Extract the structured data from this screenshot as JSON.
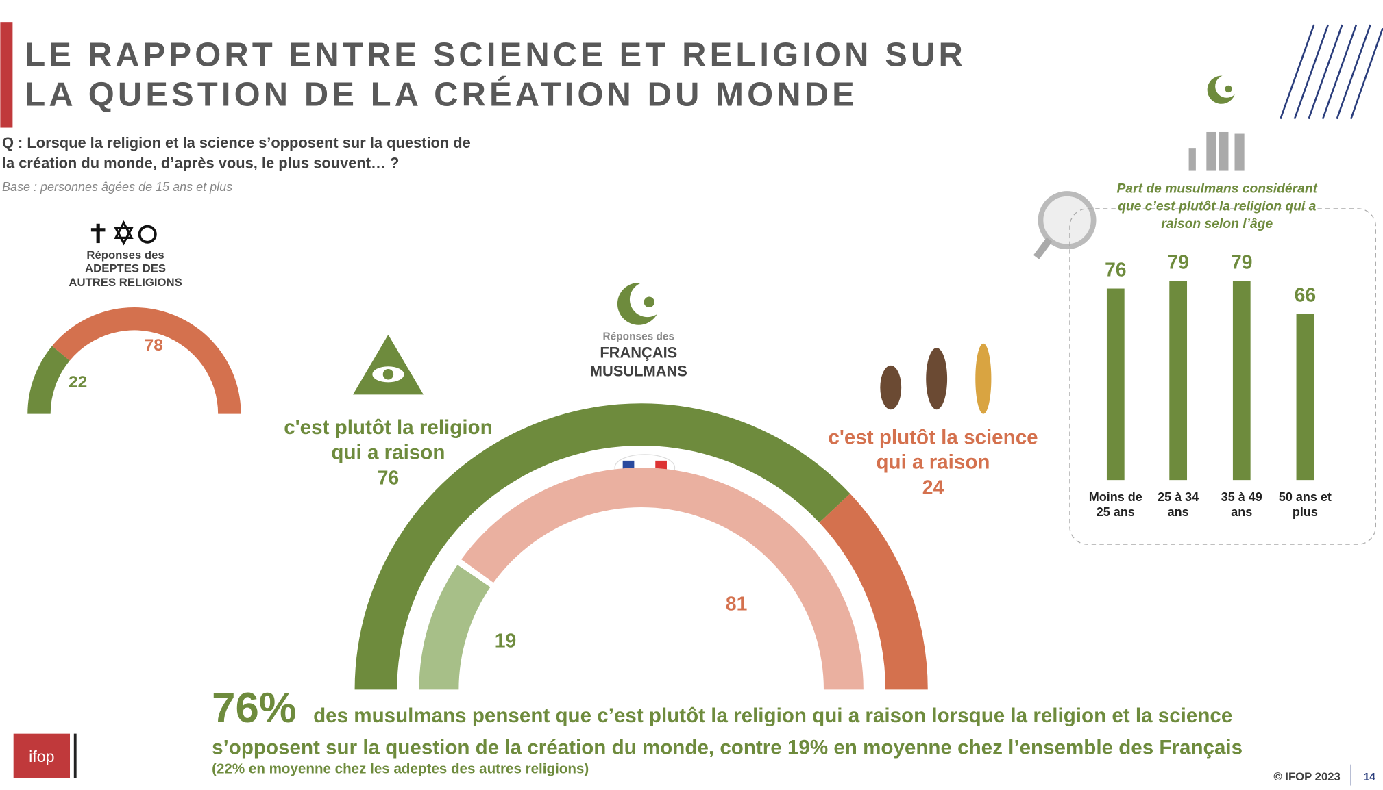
{
  "header": {
    "title": [
      "LE RAPPORT ENTRE SCIENCE ET RELIGION SUR",
      "LA QUESTION DE LA CRÉATION DU MONDE"
    ],
    "question": [
      "Q : Lorsque la religion et la science s’opposent sur la question de",
      "la création du monde, d’après vous, le plus souvent… ?"
    ],
    "base": "Base : personnes âgées de 15 ans et plus"
  },
  "chart_data": [
    {
      "type": "gauge",
      "title": [
        "Réponses des",
        "ADEPTES DES",
        "AUTRES RELIGIONS"
      ],
      "series": [
        {
          "colors": [
            "#6e8b3d",
            "#d4714e"
          ],
          "values": [
            22,
            78
          ]
        }
      ]
    },
    {
      "type": "gauge",
      "title": [
        "Réponses des",
        "FRANÇAIS",
        "MUSULMANS"
      ],
      "categories": [
        [
          "c'est plutôt la religion",
          "qui a raison"
        ],
        [
          "c'est plutôt la science",
          "qui a raison"
        ]
      ],
      "series": [
        {
          "colors": [
            "#6e8b3d",
            "#d4714e"
          ],
          "values": [
            76,
            24
          ]
        },
        {
          "colors": [
            "#a7bf88",
            "#eab0a0"
          ],
          "values": [
            19,
            81
          ]
        }
      ]
    },
    {
      "type": "bar",
      "title": [
        "Part de musulmans considérant",
        "que c’est plutôt la religion qui a",
        "raison selon l’âge"
      ],
      "categories": [
        [
          "Moins de",
          "25 ans"
        ],
        [
          "25 à 34",
          "ans"
        ],
        [
          "35 à 49",
          "ans"
        ],
        [
          "50 ans et",
          "plus"
        ]
      ],
      "values": [
        76,
        79,
        79,
        66
      ],
      "color": "#6e8b3d"
    }
  ],
  "conclusion": {
    "figure": "76%",
    "lines": [
      "des musulmans pensent que c’est plutôt la religion qui a raison lorsque la religion et la science",
      "s’opposent sur la question de la création du monde, contre 19% en moyenne chez l’ensemble des Français",
      "(22% en moyenne chez les adeptes des autres religions)"
    ]
  },
  "footer": {
    "logo": "ifop",
    "copyright": "© IFOP 2023",
    "page": "14"
  }
}
